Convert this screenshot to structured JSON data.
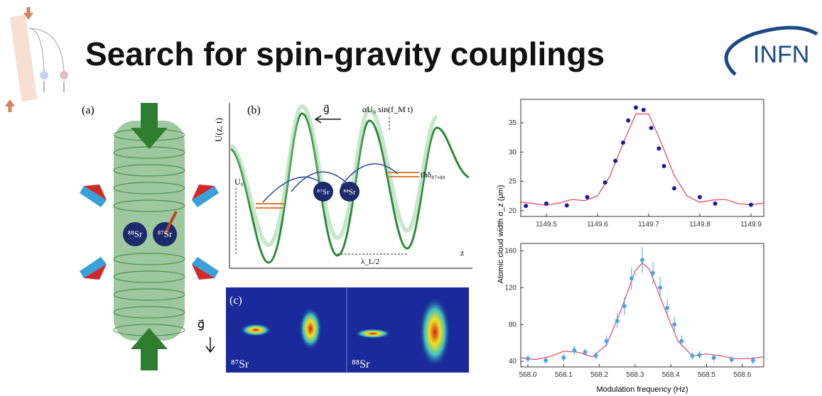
{
  "header": {
    "title": "Search for spin-gravity couplings",
    "logo": "INFN"
  },
  "figure_a": {
    "label": "(a)",
    "atom_left": "⁸⁸Sr",
    "atom_right": "⁸⁷Sr",
    "gravity": "g⃗"
  },
  "figure_b": {
    "label": "(b)",
    "y_label": "U(z, t)",
    "gravity": "g⃗",
    "modulation": "αU₀ sin(f_M t)",
    "energy": "tħδ₈₇,₈₈",
    "depth": "U₀",
    "spacing": "λ_L/2",
    "z_label": "z",
    "atom_left": "⁸⁷Sr",
    "atom_right": "⁸⁸Sr"
  },
  "figure_c": {
    "label": "(c)",
    "left": "⁸⁷Sr",
    "right": "⁸⁸Sr"
  },
  "chart_data": [
    {
      "type": "scatter",
      "ylabel": "Atomic cloud width σ_z (μm)",
      "xlim": [
        1149.45,
        1149.925
      ],
      "ylim": [
        19,
        39
      ],
      "xticks": [
        1149.5,
        1149.6,
        1149.7,
        1149.8,
        1149.9
      ],
      "yticks": [
        20,
        25,
        30,
        35
      ],
      "points": {
        "color": "#1a1a9c",
        "x": [
          1149.46,
          1149.5,
          1149.54,
          1149.58,
          1149.615,
          1149.635,
          1149.65,
          1149.66,
          1149.675,
          1149.69,
          1149.705,
          1149.72,
          1149.73,
          1149.75,
          1149.8,
          1149.83,
          1149.9
        ],
        "values": [
          20.8,
          21.2,
          20.9,
          22.3,
          24.8,
          28.5,
          31.6,
          35.4,
          37.6,
          37.2,
          34.1,
          30.6,
          27.6,
          23.8,
          22.3,
          21.2,
          21.0
        ]
      },
      "fit": {
        "color": "#e8435a",
        "x": [
          1149.45,
          1149.475,
          1149.5,
          1149.525,
          1149.55,
          1149.575,
          1149.6,
          1149.625,
          1149.65,
          1149.675,
          1149.7,
          1149.725,
          1149.75,
          1149.775,
          1149.8,
          1149.825,
          1149.85,
          1149.875,
          1149.9,
          1149.925
        ],
        "values": [
          21.5,
          21.2,
          20.9,
          21.3,
          21.9,
          21.7,
          22.5,
          26,
          31.5,
          36.5,
          36.5,
          31.5,
          26,
          22.5,
          21.4,
          21.8,
          21.9,
          21.2,
          21.0,
          21.3
        ]
      }
    },
    {
      "type": "scatter",
      "xlabel": "Modulation frequency (Hz)",
      "xlim": [
        567.98,
        568.66
      ],
      "ylim": [
        34,
        168
      ],
      "xticks": [
        {
          "value": 568,
          "label": "568.0"
        },
        568.1,
        568.2,
        568.3,
        568.4,
        568.5,
        568.6
      ],
      "yticks": [
        40,
        80,
        120,
        160
      ],
      "points": {
        "color": "#4aa3ef",
        "x": [
          568.0,
          568.05,
          568.1,
          568.13,
          568.16,
          568.19,
          568.22,
          568.25,
          568.27,
          568.29,
          568.32,
          568.35,
          568.37,
          568.39,
          568.41,
          568.43,
          568.46,
          568.48,
          568.52,
          568.57,
          568.63
        ],
        "values": [
          43,
          41,
          44,
          52,
          50,
          46,
          62,
          84,
          100,
          130,
          150,
          136,
          120,
          98,
          80,
          62,
          46,
          47,
          44,
          42,
          41
        ],
        "errors": [
          4,
          4,
          4,
          5,
          4,
          4,
          6,
          8,
          10,
          12,
          14,
          12,
          12,
          10,
          8,
          6,
          4,
          4,
          4,
          4,
          4
        ]
      },
      "fit": {
        "color": "#e8435a",
        "x": [
          567.98,
          568.02,
          568.06,
          568.1,
          568.14,
          568.18,
          568.22,
          568.26,
          568.3,
          568.32,
          568.34,
          568.38,
          568.42,
          568.46,
          568.5,
          568.54,
          568.58,
          568.62,
          568.66
        ],
        "values": [
          44,
          42,
          45,
          51,
          50,
          45,
          58,
          95,
          138,
          147,
          140,
          100,
          62,
          46,
          48,
          46,
          43,
          43,
          45
        ]
      }
    }
  ]
}
